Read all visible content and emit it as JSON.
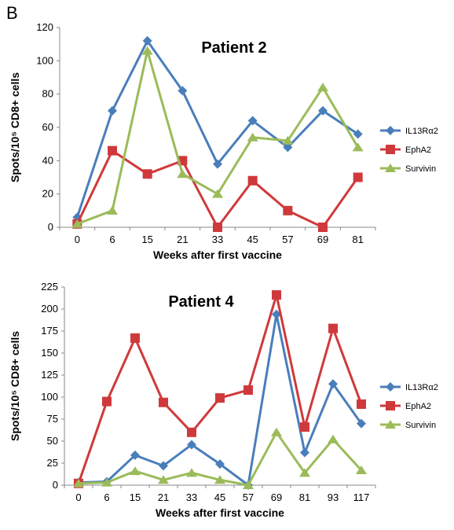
{
  "panel_label": "B",
  "colors": {
    "IL13Ra2": "#4a7ebb",
    "EphA2": "#d0393b",
    "Survivin": "#9bbb59"
  },
  "chart_data": [
    {
      "type": "line",
      "title": "Patient 2",
      "xlabel": "Weeks after first vaccine",
      "ylabel": "Spots/10⁵ CD8+ cells",
      "categories": [
        "0",
        "6",
        "15",
        "21",
        "33",
        "45",
        "57",
        "69",
        "81"
      ],
      "yticks": [
        "0",
        "20",
        "40",
        "60",
        "80",
        "100",
        "120"
      ],
      "ylim": [
        0,
        120
      ],
      "grid": false,
      "legend": "right",
      "series": [
        {
          "name": "IL13Rα2",
          "color": "#4a7ebb",
          "marker": "diamond",
          "values": [
            6,
            70,
            112,
            82,
            38,
            64,
            48,
            70,
            56
          ]
        },
        {
          "name": "EphA2",
          "color": "#d0393b",
          "marker": "square",
          "values": [
            2,
            46,
            32,
            40,
            0,
            28,
            10,
            0,
            30
          ]
        },
        {
          "name": "Survivin",
          "color": "#9bbb59",
          "marker": "triangle",
          "values": [
            2,
            10,
            106,
            32,
            20,
            54,
            52,
            84,
            48
          ]
        }
      ]
    },
    {
      "type": "line",
      "title": "Patient 4",
      "xlabel": "Weeks after first vaccine",
      "ylabel": "Spots/10⁵ CD8+ cells",
      "categories": [
        "0",
        "6",
        "15",
        "21",
        "33",
        "45",
        "57",
        "69",
        "81",
        "93",
        "117"
      ],
      "yticks": [
        "0",
        "25",
        "50",
        "75",
        "100",
        "125",
        "150",
        "175",
        "200",
        "225"
      ],
      "ylim": [
        0,
        225
      ],
      "grid": false,
      "legend": "right",
      "series": [
        {
          "name": "IL13Rα2",
          "color": "#4a7ebb",
          "marker": "diamond",
          "values": [
            3,
            4,
            34,
            22,
            46,
            24,
            0,
            194,
            37,
            115,
            70
          ]
        },
        {
          "name": "EphA2",
          "color": "#d0393b",
          "marker": "square",
          "values": [
            2,
            95,
            167,
            94,
            60,
            99,
            108,
            216,
            66,
            178,
            92
          ]
        },
        {
          "name": "Survivin",
          "color": "#9bbb59",
          "marker": "triangle",
          "values": [
            2,
            3,
            16,
            6,
            14,
            6,
            0,
            60,
            14,
            52,
            17
          ]
        }
      ]
    }
  ]
}
